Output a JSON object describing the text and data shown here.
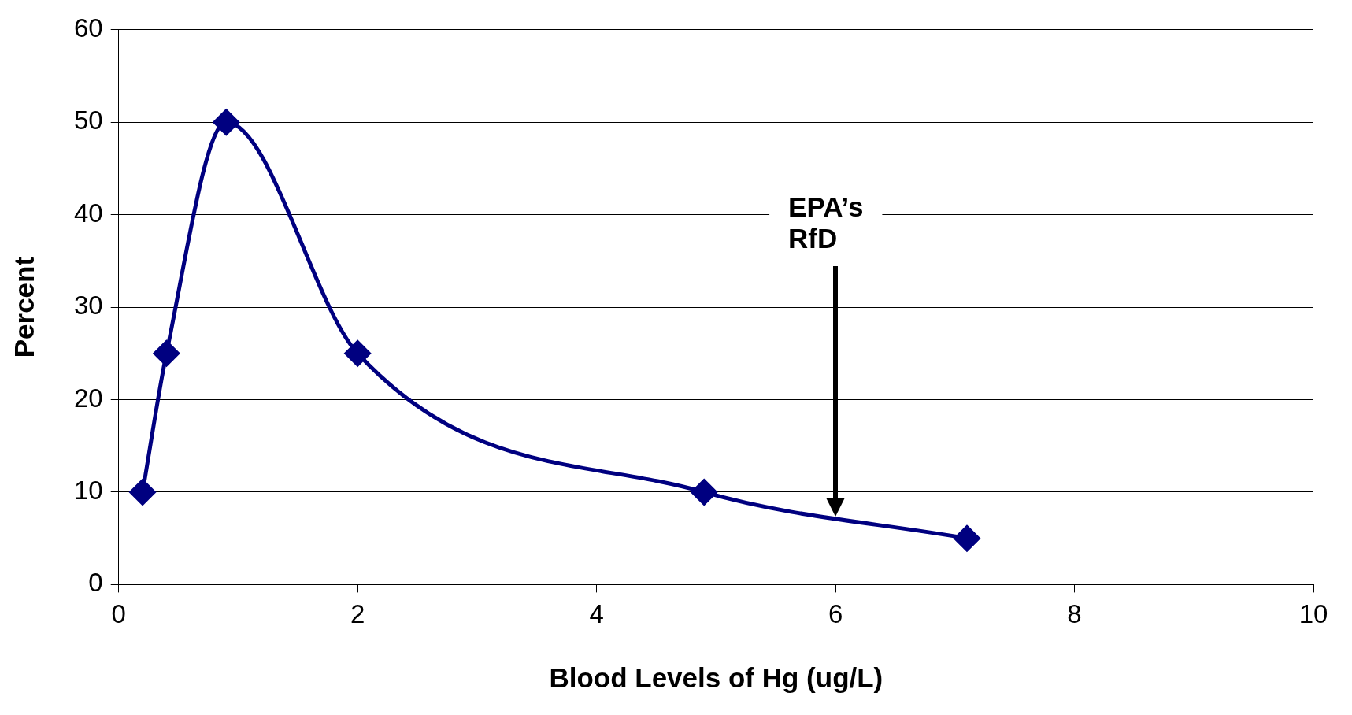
{
  "chart_data": {
    "type": "line",
    "xlabel": "Blood Levels of Hg (ug/L)",
    "ylabel": "Percent",
    "x": [
      0.2,
      0.4,
      0.9,
      2,
      4.9,
      7.1
    ],
    "series": [
      {
        "color": "#000080",
        "values": [
          10,
          25,
          50,
          25,
          10,
          5
        ]
      }
    ],
    "xlim": [
      0,
      10
    ],
    "xticks": [
      0,
      2,
      4,
      6,
      8,
      10
    ],
    "ylim": [
      0,
      60
    ],
    "yticks": [
      0,
      10,
      20,
      30,
      40,
      50,
      60
    ],
    "grid": "y",
    "legend": false,
    "marker": "diamond",
    "line_style": "solid",
    "annotations": [
      "EPA’s RfD"
    ]
  }
}
